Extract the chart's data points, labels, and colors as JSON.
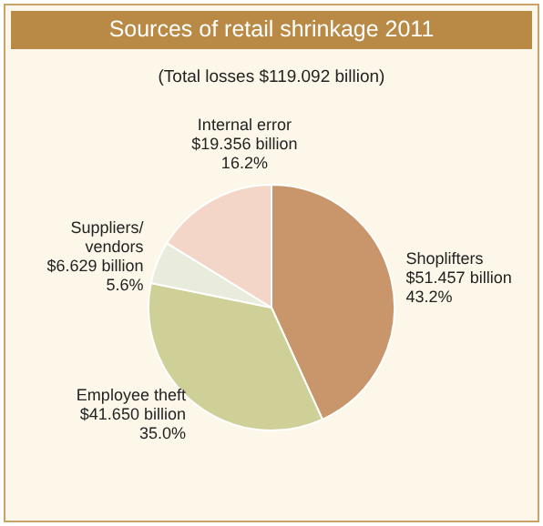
{
  "chart_data": {
    "type": "pie",
    "title": "Sources of retail shrinkage 2011",
    "subtitle": "(Total losses $119.092 billion)",
    "categories": [
      "Shoplifters",
      "Employee theft",
      "Suppliers/\nvendors",
      "Internal error"
    ],
    "values": [
      43.2,
      35.0,
      5.6,
      16.2
    ],
    "value_labels": [
      "$51.457 billion\n43.2%",
      "$41.650 billion\n35.0%",
      "$6.629 billion\n5.6%",
      "$19.356 billion\n16.2%"
    ],
    "colors": [
      "#c9966c",
      "#cfcf98",
      "#e9ebdc",
      "#f3d6c7"
    ],
    "legend": false
  }
}
